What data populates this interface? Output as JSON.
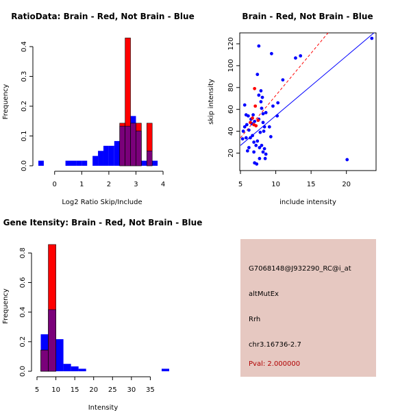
{
  "colors": {
    "red": "#ff0000",
    "blue": "#0000ff",
    "overlap": "#7a007a",
    "panel": "#e6c8c1",
    "pval": "#b00000"
  },
  "chart_data": [
    {
      "type": "bar",
      "title": "RatioData: Brain - Red, Not Brain - Blue",
      "xlabel": "Log2 Ratio Skip/Include",
      "ylabel": "Frequency",
      "xlim": [
        -0.6,
        4.1
      ],
      "ylim": [
        0,
        0.43
      ],
      "xticks": [
        0,
        1,
        2,
        3,
        4
      ],
      "yticks": [
        0.0,
        0.1,
        0.2,
        0.3,
        0.4
      ],
      "bin_width": 0.2,
      "series": [
        {
          "name": "Not Brain",
          "color": "blue",
          "bins": [
            [
              -0.6,
              0.017
            ],
            [
              -0.4,
              0
            ],
            [
              -0.2,
              0
            ],
            [
              0,
              0
            ],
            [
              0.2,
              0
            ],
            [
              0.4,
              0.017
            ],
            [
              0.6,
              0.017
            ],
            [
              0.8,
              0.017
            ],
            [
              1.0,
              0.017
            ],
            [
              1.2,
              0
            ],
            [
              1.4,
              0.033
            ],
            [
              1.6,
              0.05
            ],
            [
              1.8,
              0.067
            ],
            [
              2.0,
              0.067
            ],
            [
              2.2,
              0.083
            ],
            [
              2.4,
              0.133
            ],
            [
              2.6,
              0.133
            ],
            [
              2.8,
              0.167
            ],
            [
              3.0,
              0.117
            ],
            [
              3.2,
              0.017
            ],
            [
              3.4,
              0.05
            ],
            [
              3.6,
              0.017
            ]
          ]
        },
        {
          "name": "Brain",
          "color": "red",
          "bins": [
            [
              2.4,
              0.143
            ],
            [
              2.6,
              0.429
            ],
            [
              2.8,
              0.143
            ],
            [
              3.0,
              0.143
            ],
            [
              3.4,
              0.143
            ]
          ]
        }
      ]
    },
    {
      "type": "scatter",
      "title": "Brain - Red, Not Brain - Blue",
      "xlabel": "include intensity",
      "ylabel": "skip intensity",
      "xlim": [
        4.9,
        24.2
      ],
      "ylim": [
        4,
        130
      ],
      "xticks": [
        5,
        10,
        15,
        20
      ],
      "yticks": [
        20,
        40,
        60,
        80,
        100,
        120
      ],
      "series": [
        {
          "name": "Not Brain",
          "color": "blue",
          "points": [
            [
              23.6,
              125
            ],
            [
              7.6,
              118
            ],
            [
              9.4,
              111
            ],
            [
              13.5,
              109
            ],
            [
              12.8,
              107
            ],
            [
              7.4,
              92
            ],
            [
              11.0,
              87
            ],
            [
              7.9,
              77
            ],
            [
              7.6,
              73
            ],
            [
              8.1,
              71
            ],
            [
              7.9,
              67
            ],
            [
              10.3,
              66
            ],
            [
              8.0,
              61
            ],
            [
              5.6,
              64
            ],
            [
              9.6,
              63
            ],
            [
              8.2,
              56
            ],
            [
              8.6,
              57
            ],
            [
              6.8,
              55
            ],
            [
              5.8,
              55
            ],
            [
              6.1,
              54
            ],
            [
              7.6,
              51
            ],
            [
              6.5,
              51
            ],
            [
              10.2,
              54
            ],
            [
              8.2,
              48
            ],
            [
              7.0,
              49
            ],
            [
              6.6,
              47
            ],
            [
              5.9,
              46
            ],
            [
              5.6,
              44
            ],
            [
              8.4,
              44
            ],
            [
              9.1,
              44
            ],
            [
              6.2,
              41
            ],
            [
              7.8,
              39
            ],
            [
              8.3,
              40
            ],
            [
              5.4,
              40
            ],
            [
              6.7,
              36
            ],
            [
              9.3,
              35
            ],
            [
              5.8,
              34
            ],
            [
              6.4,
              34
            ],
            [
              5.3,
              33
            ],
            [
              7.4,
              31
            ],
            [
              6.9,
              30
            ],
            [
              8.0,
              27
            ],
            [
              7.2,
              27
            ],
            [
              7.7,
              25
            ],
            [
              8.4,
              24
            ],
            [
              6.2,
              25
            ],
            [
              6.0,
              22
            ],
            [
              8.2,
              21
            ],
            [
              6.9,
              21
            ],
            [
              8.6,
              19
            ],
            [
              8.5,
              15
            ],
            [
              7.7,
              15
            ],
            [
              20.1,
              14
            ],
            [
              7.0,
              11
            ],
            [
              7.3,
              10
            ]
          ]
        },
        {
          "name": "Brain",
          "color": "red",
          "points": [
            [
              7.0,
              79
            ],
            [
              7.1,
              63
            ],
            [
              7.5,
              50
            ],
            [
              6.7,
              52
            ],
            [
              6.4,
              48
            ],
            [
              6.9,
              46
            ],
            [
              7.2,
              45
            ]
          ]
        }
      ],
      "fit_lines": [
        {
          "name": "Brain",
          "color": "red",
          "style": "dashed",
          "points": [
            [
              5.0,
              34
            ],
            [
              17.4,
              130
            ]
          ]
        },
        {
          "name": "Not Brain",
          "color": "blue",
          "style": "solid",
          "points": [
            [
              5.0,
              27
            ],
            [
              23.9,
              130
            ]
          ]
        }
      ]
    },
    {
      "type": "bar",
      "title": "Gene Itensity: Brain - Red, Not Brain - Blue",
      "xlabel": "Intensity",
      "ylabel": "Frequency",
      "xlim": [
        5,
        40
      ],
      "ylim": [
        0,
        0.88
      ],
      "xticks": [
        5,
        10,
        15,
        20,
        25,
        30,
        35
      ],
      "yticks": [
        0.0,
        0.2,
        0.4,
        0.6,
        0.8
      ],
      "bin_width": 2,
      "series": [
        {
          "name": "Not Brain",
          "color": "blue",
          "bins": [
            [
              6,
              0.25
            ],
            [
              8,
              0.417
            ],
            [
              10,
              0.217
            ],
            [
              12,
              0.05
            ],
            [
              14,
              0.033
            ],
            [
              16,
              0.017
            ],
            [
              38,
              0.017
            ]
          ]
        },
        {
          "name": "Brain",
          "color": "red",
          "bins": [
            [
              6,
              0.143
            ],
            [
              8,
              0.857
            ]
          ]
        }
      ]
    }
  ],
  "info": {
    "probe": "G7068148@J932290_RC@i_at",
    "event": "altMutEx",
    "gene": "Rrh",
    "location": "chr3.16736-2.7",
    "pval": "Pval: 2.000000"
  }
}
